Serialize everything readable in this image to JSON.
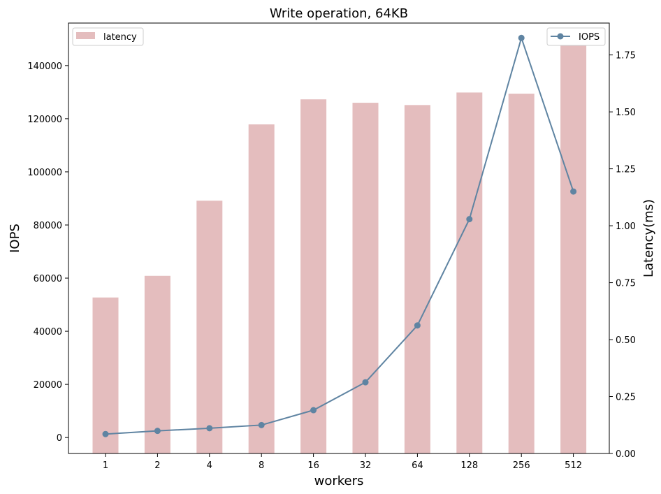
{
  "chart_data": {
    "type": "bar",
    "title": "Write operation, 64KB",
    "xlabel": "workers",
    "ylabel_left": "IOPS",
    "ylabel_right": "Latency(ms)",
    "categories": [
      "1",
      "2",
      "4",
      "8",
      "16",
      "32",
      "64",
      "128",
      "256",
      "512"
    ],
    "ylim_left": [
      -6000,
      156000
    ],
    "ylim_right": [
      0,
      1.89
    ],
    "yticks_left": [
      0,
      20000,
      40000,
      60000,
      80000,
      100000,
      120000,
      140000
    ],
    "yticks_right": [
      0.0,
      0.25,
      0.5,
      0.75,
      1.0,
      1.25,
      1.5,
      1.75
    ],
    "grid": false,
    "series": [
      {
        "name": "latency",
        "kind": "bar",
        "axis": "right",
        "color": "#e4bdbe",
        "values": [
          0.685,
          0.78,
          1.11,
          1.445,
          1.555,
          1.54,
          1.53,
          1.585,
          1.58,
          1.8
        ]
      },
      {
        "name": "IOPS",
        "kind": "line",
        "axis": "left",
        "color": "#5f84a2",
        "values": [
          1300,
          2500,
          3500,
          4700,
          10300,
          20800,
          42200,
          82200,
          150400,
          92600
        ]
      }
    ],
    "legends": {
      "latency": "top-left",
      "IOPS": "top-right"
    }
  }
}
